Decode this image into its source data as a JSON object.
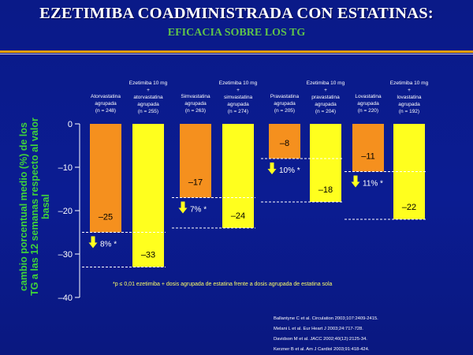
{
  "header": {
    "title": "EZETIMIBA COADMINISTRADA CON ESTATINAS:",
    "subtitle": "EFICACIA SOBRE LOS TG"
  },
  "footnote": "*p ≤ 0,01 ezetimiba + dosis agrupada de estatina frente a dosis agrupada de estatina sola",
  "references": [
    "Ballantyne C et al. Circulation 2003;107:2409-2415.",
    "Melani L et al. Eur Heart J 2003;24:717-728.",
    "Davidson M et al. JACC 2002;40(12):2125-34.",
    "Kerzner B et al. Am J Cardiol 2003;91:418-424."
  ],
  "chart_data": {
    "type": "bar",
    "ylabel": "cambio porcentual medio (%) de los TG a las 12 semanas respecto al valor basal",
    "ylim": [
      -40,
      0
    ],
    "yticks": [
      0,
      -10,
      -20,
      -30,
      -40
    ],
    "yticklabels": [
      "0",
      "–10",
      "–20",
      "–30",
      "–40"
    ],
    "grid": false,
    "colors": {
      "statin": "#f5901e",
      "combo": "#ffff1e",
      "text": "#ffffff",
      "value": "#000000",
      "ylabel": "#3fd23a",
      "footnote": "#ffff66"
    },
    "groups": [
      {
        "statin": {
          "label": [
            "Atorvastatina",
            "agrupada",
            "(n = 248)"
          ],
          "value": -25,
          "value_label": "–25"
        },
        "combo": {
          "label": [
            "Ezetimiba 10 mg",
            "+",
            "atorvastatina",
            "agrupada",
            "(n = 255)"
          ],
          "value": -33,
          "value_label": "–33"
        },
        "diff_label": "8% *"
      },
      {
        "statin": {
          "label": [
            "Simvastatina",
            "agrupada",
            "(n = 263)"
          ],
          "value": -17,
          "value_label": "–17"
        },
        "combo": {
          "label": [
            "Ezetimiba 10 mg",
            "+",
            "simvastatina",
            "agrupada",
            "(n = 274)"
          ],
          "value": -24,
          "value_label": "–24"
        },
        "diff_label": "7% *"
      },
      {
        "statin": {
          "label": [
            "Pravastatina",
            "agrupada",
            "(n = 205)"
          ],
          "value": -8,
          "value_label": "–8"
        },
        "combo": {
          "label": [
            "Ezetimiba 10 mg",
            "+",
            "pravastatina",
            "agrupada",
            "(n = 204)"
          ],
          "value": -18,
          "value_label": "–18"
        },
        "diff_label": "10% *"
      },
      {
        "statin": {
          "label": [
            "Lovastatina",
            "agrupada",
            "(n = 220)"
          ],
          "value": -11,
          "value_label": "–11"
        },
        "combo": {
          "label": [
            "Ezetimiba 10 mg",
            "+",
            "lovastatina",
            "agrupada",
            "(n = 192)"
          ],
          "value": -22,
          "value_label": "–22"
        },
        "diff_label": "11% *"
      }
    ]
  }
}
